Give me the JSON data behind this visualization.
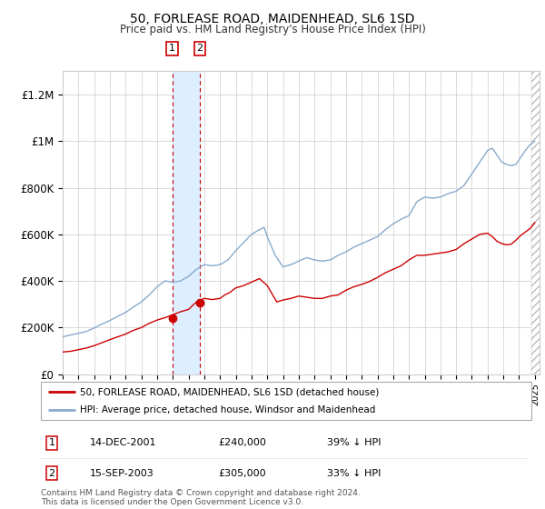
{
  "title": "50, FORLEASE ROAD, MAIDENHEAD, SL6 1SD",
  "subtitle": "Price paid vs. HM Land Registry's House Price Index (HPI)",
  "legend_line1": "50, FORLEASE ROAD, MAIDENHEAD, SL6 1SD (detached house)",
  "legend_line2": "HPI: Average price, detached house, Windsor and Maidenhead",
  "footer": "Contains HM Land Registry data © Crown copyright and database right 2024.\nThis data is licensed under the Open Government Licence v3.0.",
  "sale1_date": "14-DEC-2001",
  "sale1_price": 240000,
  "sale1_label": "39% ↓ HPI",
  "sale2_date": "15-SEP-2003",
  "sale2_price": 305000,
  "sale2_label": "33% ↓ HPI",
  "red_color": "#cc0000",
  "blue_color": "#88aacc",
  "shade_color": "#ddeeff",
  "hatch_color": "#cccccc",
  "ylim_max": 1300000,
  "ytick_labels": [
    "£0",
    "£200K",
    "£400K",
    "£600K",
    "£800K",
    "£1M",
    "£1.2M"
  ],
  "ytick_values": [
    0,
    200000,
    400000,
    600000,
    800000,
    1000000,
    1200000
  ],
  "hpi_x": [
    1995.0,
    1995.5,
    1996.0,
    1996.5,
    1997.0,
    1997.5,
    1998.0,
    1998.5,
    1999.0,
    1999.5,
    2000.0,
    2000.5,
    2001.0,
    2001.5,
    2002.0,
    2002.5,
    2003.0,
    2003.5,
    2004.0,
    2004.5,
    2005.0,
    2005.5,
    2006.0,
    2006.5,
    2007.0,
    2007.5,
    2007.8,
    2008.0,
    2008.5,
    2009.0,
    2009.5,
    2010.0,
    2010.5,
    2011.0,
    2011.5,
    2012.0,
    2012.5,
    2013.0,
    2013.5,
    2014.0,
    2014.5,
    2015.0,
    2015.5,
    2016.0,
    2016.5,
    2017.0,
    2017.5,
    2018.0,
    2018.5,
    2019.0,
    2019.5,
    2020.0,
    2020.5,
    2021.0,
    2021.5,
    2022.0,
    2022.3,
    2022.6,
    2022.9,
    2023.2,
    2023.5,
    2023.8,
    2024.1,
    2024.4,
    2024.7,
    2025.0
  ],
  "hpi_y": [
    160000,
    168000,
    175000,
    183000,
    198000,
    215000,
    230000,
    248000,
    265000,
    288000,
    310000,
    340000,
    375000,
    400000,
    395000,
    400000,
    420000,
    450000,
    470000,
    465000,
    470000,
    490000,
    530000,
    565000,
    600000,
    620000,
    630000,
    590000,
    510000,
    460000,
    470000,
    485000,
    500000,
    490000,
    485000,
    490000,
    510000,
    525000,
    545000,
    560000,
    575000,
    590000,
    620000,
    645000,
    665000,
    680000,
    740000,
    760000,
    755000,
    760000,
    775000,
    785000,
    810000,
    860000,
    910000,
    960000,
    970000,
    940000,
    910000,
    900000,
    895000,
    900000,
    930000,
    960000,
    985000,
    1000000
  ],
  "red_x": [
    1995.0,
    1995.5,
    1996.0,
    1996.5,
    1997.0,
    1997.5,
    1998.0,
    1998.5,
    1999.0,
    1999.5,
    2000.0,
    2000.5,
    2001.0,
    2001.5,
    2002.0,
    2002.5,
    2003.0,
    2003.5,
    2004.0,
    2004.5,
    2005.0,
    2005.3,
    2005.6,
    2006.0,
    2006.5,
    2007.0,
    2007.5,
    2008.0,
    2008.3,
    2008.6,
    2009.0,
    2009.5,
    2010.0,
    2010.5,
    2011.0,
    2011.5,
    2012.0,
    2012.5,
    2013.0,
    2013.5,
    2014.0,
    2014.5,
    2015.0,
    2015.5,
    2016.0,
    2016.5,
    2017.0,
    2017.5,
    2018.0,
    2018.5,
    2019.0,
    2019.5,
    2020.0,
    2020.5,
    2021.0,
    2021.5,
    2022.0,
    2022.3,
    2022.6,
    2022.9,
    2023.2,
    2023.5,
    2023.8,
    2024.1,
    2024.4,
    2024.7,
    2025.0
  ],
  "red_y": [
    95000,
    98000,
    105000,
    112000,
    122000,
    135000,
    148000,
    160000,
    172000,
    188000,
    200000,
    218000,
    232000,
    242000,
    255000,
    268000,
    278000,
    310000,
    325000,
    320000,
    325000,
    340000,
    350000,
    370000,
    380000,
    395000,
    410000,
    380000,
    345000,
    310000,
    318000,
    325000,
    335000,
    330000,
    325000,
    325000,
    335000,
    340000,
    360000,
    375000,
    385000,
    398000,
    415000,
    435000,
    450000,
    465000,
    490000,
    510000,
    510000,
    515000,
    520000,
    525000,
    535000,
    560000,
    580000,
    600000,
    605000,
    590000,
    570000,
    560000,
    555000,
    558000,
    575000,
    595000,
    610000,
    625000,
    650000
  ],
  "xlim_min": 1995.0,
  "xlim_max": 2025.3,
  "sale1_t": 2001.958,
  "sale2_t": 2003.708,
  "hatch_start": 2024.8
}
